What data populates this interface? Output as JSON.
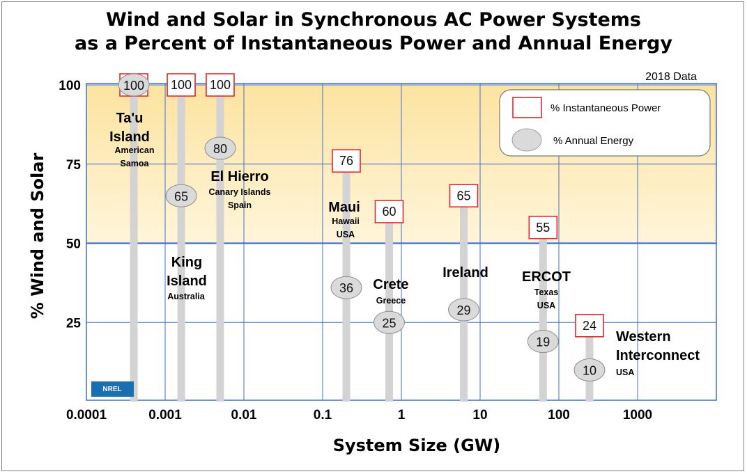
{
  "chart_data": {
    "type": "bar",
    "title_lines": [
      "Wind and Solar in Synchronous AC Power Systems",
      "as a Percent of Instantaneous Power and Annual Energy"
    ],
    "year_note": "2018 Data",
    "xlabel": "System Size (GW)",
    "ylabel": "% Wind and Solar",
    "x_scale": "log",
    "xlim": [
      0.0001,
      10000
    ],
    "ylim": [
      0,
      100
    ],
    "x_ticks": [
      "0.0001",
      "0.001",
      "0.01",
      "0.1",
      "1",
      "10",
      "100",
      "1000"
    ],
    "y_ticks": [
      "100",
      "75",
      "50",
      "25"
    ],
    "highlight_band": [
      50,
      100
    ],
    "grid": true,
    "legend": {
      "placement": "top-right",
      "items": [
        "% Instantaneous Power",
        "% Annual Energy"
      ]
    },
    "systems": [
      {
        "name_lines": [
          "Ta'u",
          "Island"
        ],
        "sub_lines": [
          "American",
          "Samoa"
        ],
        "size_gw": 0.0004,
        "instantaneous": 100,
        "annual": 100
      },
      {
        "name_lines": [
          "King",
          "Island"
        ],
        "sub_lines": [
          "Australia"
        ],
        "size_gw": 0.0016,
        "instantaneous": 100,
        "annual": 65
      },
      {
        "name_lines": [
          "El Hierro"
        ],
        "sub_lines": [
          "Canary Islands",
          "Spain"
        ],
        "size_gw": 0.005,
        "instantaneous": 100,
        "annual": 80
      },
      {
        "name_lines": [
          "Maui"
        ],
        "sub_lines": [
          "Hawaii",
          "USA"
        ],
        "size_gw": 0.2,
        "instantaneous": 76,
        "annual": 36
      },
      {
        "name_lines": [
          "Crete"
        ],
        "sub_lines": [
          "Greece"
        ],
        "size_gw": 0.7,
        "instantaneous": 60,
        "annual": 25
      },
      {
        "name_lines": [
          "Ireland"
        ],
        "sub_lines": [],
        "size_gw": 6.2,
        "instantaneous": 65,
        "annual": 29
      },
      {
        "name_lines": [
          "ERCOT"
        ],
        "sub_lines": [
          "Texas",
          "USA"
        ],
        "size_gw": 63,
        "instantaneous": 55,
        "annual": 19
      },
      {
        "name_lines": [
          "Western",
          "Interconnect"
        ],
        "sub_lines": [
          "USA"
        ],
        "size_gw": 245,
        "instantaneous": 24,
        "annual": 10
      }
    ],
    "colors": {
      "grid": "#3f6fd1",
      "band_top": "#fce3a0",
      "band_bottom": "#fff5da",
      "bar": "#d3d3d3",
      "box_border": "#e3262c",
      "circle_fill": "#dadada",
      "circle_border": "#8c8c8c"
    }
  },
  "logo": {
    "text": "NREL"
  }
}
